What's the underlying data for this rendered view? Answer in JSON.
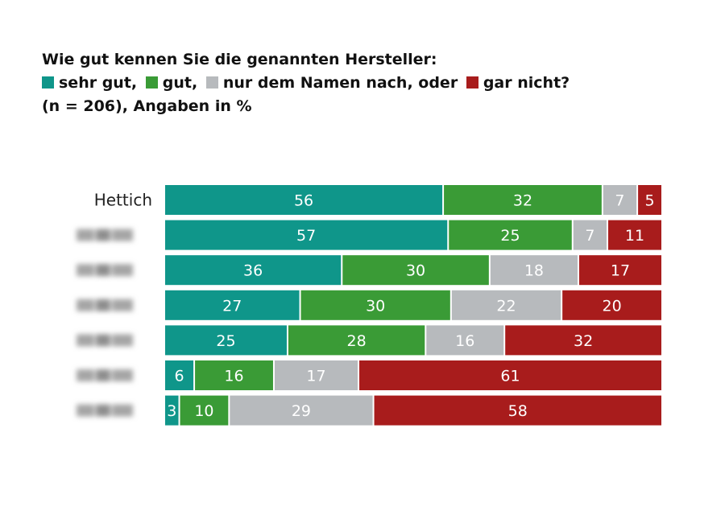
{
  "title": {
    "line1": "Wie gut kennen Sie die genannten Hersteller:",
    "line3": "(n = 206), Angaben in %"
  },
  "legend": [
    {
      "label": "sehr gut,",
      "color": "#0f968a"
    },
    {
      "label": "gut,",
      "color": "#3a9b36"
    },
    {
      "label": "nur dem Namen nach, oder",
      "color": "#b7babd"
    },
    {
      "label": "gar nicht?",
      "color": "#a81c1c"
    }
  ],
  "chart_data": {
    "type": "bar",
    "orientation": "horizontal",
    "stacked": true,
    "categories": [
      "Hettich",
      "",
      "",
      "",
      "",
      "",
      ""
    ],
    "series": [
      {
        "name": "sehr gut",
        "color": "#0f968a",
        "values": [
          56,
          57,
          36,
          27,
          25,
          6,
          3
        ]
      },
      {
        "name": "gut",
        "color": "#3a9b36",
        "values": [
          32,
          25,
          30,
          30,
          28,
          16,
          10
        ]
      },
      {
        "name": "nur dem Namen nach",
        "color": "#b7babd",
        "values": [
          7,
          7,
          18,
          22,
          16,
          17,
          29
        ]
      },
      {
        "name": "gar nicht",
        "color": "#a81c1c",
        "values": [
          5,
          11,
          17,
          20,
          32,
          61,
          58
        ]
      }
    ],
    "blurred_labels": [
      false,
      true,
      true,
      true,
      true,
      true,
      true
    ],
    "xlim": [
      0,
      100
    ],
    "grid": false,
    "legend_position": "top-left"
  }
}
